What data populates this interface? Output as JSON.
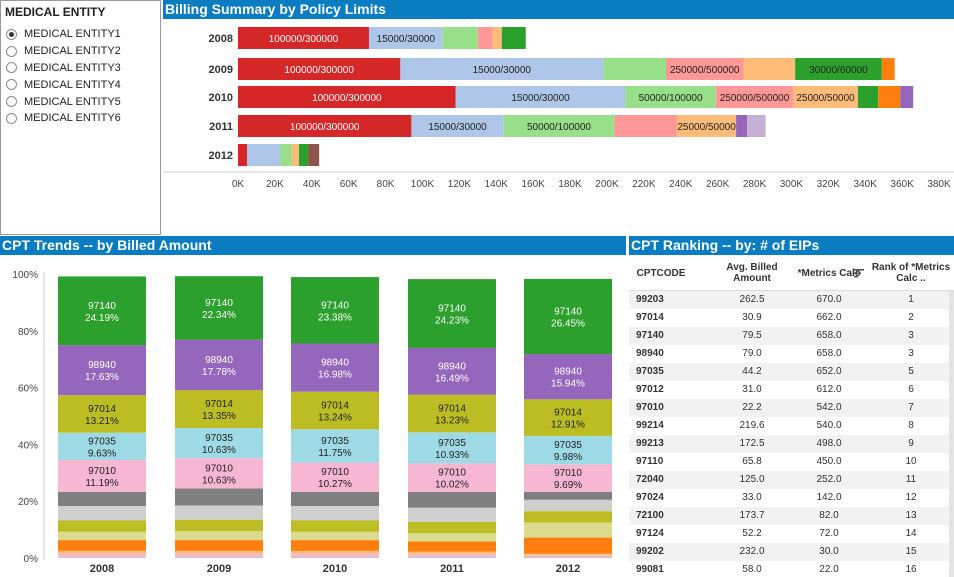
{
  "filter": {
    "title": "MEDICAL ENTITY",
    "selected": 0,
    "options": [
      "MEDICAL ENTITY1",
      "MEDICAL ENTITY2",
      "MEDICAL ENTITY3",
      "MEDICAL ENTITY4",
      "MEDICAL ENTITY5",
      "MEDICAL ENTITY6"
    ]
  },
  "billing": {
    "title": "Billing Summary by Policy Limits"
  },
  "trends": {
    "title": "CPT Trends -- by Billed Amount"
  },
  "ranking": {
    "title": "CPT Ranking -- by: # of EIPs",
    "columns": [
      "CPTCODE",
      "Avg. Billed Amount",
      "*Metrics Calc",
      "Rank of *Metrics Calc .."
    ],
    "sort_icon": "sort-descending-icon",
    "rows": [
      {
        "code": "99203",
        "avg": "262.5",
        "metrics": "670.0",
        "rank": "1"
      },
      {
        "code": "97014",
        "avg": "30.9",
        "metrics": "662.0",
        "rank": "2"
      },
      {
        "code": "97140",
        "avg": "79.5",
        "metrics": "658.0",
        "rank": "3"
      },
      {
        "code": "98940",
        "avg": "79.0",
        "metrics": "658.0",
        "rank": "3"
      },
      {
        "code": "97035",
        "avg": "44.2",
        "metrics": "652.0",
        "rank": "5"
      },
      {
        "code": "97012",
        "avg": "31.0",
        "metrics": "612.0",
        "rank": "6"
      },
      {
        "code": "97010",
        "avg": "22.2",
        "metrics": "542.0",
        "rank": "7"
      },
      {
        "code": "99214",
        "avg": "219.6",
        "metrics": "540.0",
        "rank": "8"
      },
      {
        "code": "99213",
        "avg": "172.5",
        "metrics": "498.0",
        "rank": "9"
      },
      {
        "code": "97110",
        "avg": "65.8",
        "metrics": "450.0",
        "rank": "10"
      },
      {
        "code": "72040",
        "avg": "125.0",
        "metrics": "252.0",
        "rank": "11"
      },
      {
        "code": "97024",
        "avg": "33.0",
        "metrics": "142.0",
        "rank": "12"
      },
      {
        "code": "72100",
        "avg": "173.7",
        "metrics": "82.0",
        "rank": "13"
      },
      {
        "code": "97124",
        "avg": "52.2",
        "metrics": "72.0",
        "rank": "14"
      },
      {
        "code": "99202",
        "avg": "232.0",
        "metrics": "30.0",
        "rank": "15"
      },
      {
        "code": "99081",
        "avg": "58.0",
        "metrics": "22.0",
        "rank": "16"
      }
    ]
  },
  "chart_data": [
    {
      "type": "bar",
      "orientation": "horizontal",
      "stacked": true,
      "title": "Billing Summary by Policy Limits",
      "categories": [
        "2008",
        "2009",
        "2010",
        "2011",
        "2012"
      ],
      "xlim": [
        0,
        380000
      ],
      "x_ticks": [
        0,
        20000,
        40000,
        60000,
        80000,
        100000,
        120000,
        140000,
        160000,
        180000,
        200000,
        220000,
        240000,
        260000,
        280000,
        300000,
        320000,
        340000,
        360000,
        380000
      ],
      "x_tick_labels": [
        "0K",
        "20K",
        "40K",
        "60K",
        "80K",
        "100K",
        "120K",
        "140K",
        "160K",
        "180K",
        "200K",
        "220K",
        "240K",
        "260K",
        "280K",
        "300K",
        "320K",
        "340K",
        "360K",
        "380K"
      ],
      "grid": false,
      "colors": [
        "#d62728",
        "#aec7e8",
        "#98df8a",
        "#ff9896",
        "#ffbb78",
        "#2ca02c",
        "#ff7f0e",
        "#9467bd",
        "#c5b0d5",
        "#8c564b"
      ],
      "bars": [
        {
          "year": "2008",
          "segments": [
            {
              "label": "100000/300000",
              "value": 71000,
              "color": "#d62728"
            },
            {
              "label": "15000/30000",
              "value": 40000,
              "color": "#aec7e8"
            },
            {
              "label": "",
              "value": 19000,
              "color": "#98df8a"
            },
            {
              "label": "",
              "value": 8000,
              "color": "#ff9896"
            },
            {
              "label": "",
              "value": 5000,
              "color": "#ffbb78"
            },
            {
              "label": "",
              "value": 13000,
              "color": "#2ca02c"
            }
          ]
        },
        {
          "year": "2009",
          "segments": [
            {
              "label": "100000/300000",
              "value": 88000,
              "color": "#d62728"
            },
            {
              "label": "15000/30000",
              "value": 110000,
              "color": "#aec7e8"
            },
            {
              "label": "",
              "value": 34000,
              "color": "#98df8a"
            },
            {
              "label": "250000/500000",
              "value": 42000,
              "color": "#ff9896"
            },
            {
              "label": "",
              "value": 28000,
              "color": "#ffbb78"
            },
            {
              "label": "30000/60000",
              "value": 47000,
              "color": "#2ca02c"
            },
            {
              "label": "",
              "value": 7000,
              "color": "#ff7f0e"
            }
          ]
        },
        {
          "year": "2010",
          "segments": [
            {
              "label": "100000/300000",
              "value": 118000,
              "color": "#d62728"
            },
            {
              "label": "15000/30000",
              "value": 92000,
              "color": "#aec7e8"
            },
            {
              "label": "50000/100000",
              "value": 49000,
              "color": "#98df8a"
            },
            {
              "label": "250000/500000",
              "value": 42000,
              "color": "#ff9896"
            },
            {
              "label": "25000/50000",
              "value": 35000,
              "color": "#ffbb78"
            },
            {
              "label": "",
              "value": 11000,
              "color": "#2ca02c"
            },
            {
              "label": "",
              "value": 12000,
              "color": "#ff7f0e"
            },
            {
              "label": "",
              "value": 7000,
              "color": "#9467bd"
            }
          ]
        },
        {
          "year": "2011",
          "segments": [
            {
              "label": "100000/300000",
              "value": 94000,
              "color": "#d62728"
            },
            {
              "label": "15000/30000",
              "value": 50000,
              "color": "#aec7e8"
            },
            {
              "label": "50000/100000",
              "value": 60000,
              "color": "#98df8a"
            },
            {
              "label": "",
              "value": 34000,
              "color": "#ff9896"
            },
            {
              "label": "25000/50000",
              "value": 32000,
              "color": "#ffbb78"
            },
            {
              "label": "",
              "value": 6000,
              "color": "#9467bd"
            },
            {
              "label": "",
              "value": 10000,
              "color": "#c5b0d5"
            }
          ]
        },
        {
          "year": "2012",
          "segments": [
            {
              "label": "",
              "value": 5000,
              "color": "#d62728"
            },
            {
              "label": "",
              "value": 18000,
              "color": "#aec7e8"
            },
            {
              "label": "",
              "value": 6000,
              "color": "#98df8a"
            },
            {
              "label": "",
              "value": 4000,
              "color": "#ffbb78"
            },
            {
              "label": "",
              "value": 5000,
              "color": "#2ca02c"
            },
            {
              "label": "",
              "value": 6000,
              "color": "#8c564b"
            }
          ]
        }
      ]
    },
    {
      "type": "bar",
      "stacked": true,
      "normalized": true,
      "title": "CPT Trends -- by Billed Amount",
      "categories": [
        "2008",
        "2009",
        "2010",
        "2011",
        "2012"
      ],
      "ylim": [
        0,
        100
      ],
      "y_ticks": [
        0,
        20,
        40,
        60,
        80,
        100
      ],
      "y_tick_labels": [
        "0%",
        "20%",
        "40%",
        "60%",
        "80%",
        "100%"
      ],
      "series": [
        {
          "name": "",
          "color": "#c7c7c7",
          "values": [
            0.5,
            0.5,
            0.5,
            0.5,
            0.5
          ]
        },
        {
          "name": "",
          "color": "#f7b6d2",
          "values": [
            1.0,
            1.0,
            1.0,
            0.8,
            0.5
          ]
        },
        {
          "name": "",
          "color": "#ffbb78",
          "values": [
            1.0,
            1.0,
            1.0,
            0.9,
            0.5
          ]
        },
        {
          "name": "",
          "color": "#ff7f0e",
          "values": [
            3.8,
            3.8,
            3.8,
            3.6,
            5.7
          ]
        },
        {
          "name": "",
          "color": "#dbdb8d",
          "values": [
            3.0,
            3.2,
            3.0,
            2.9,
            5.3
          ]
        },
        {
          "name": "",
          "color": "#bcbd22",
          "values": [
            4.0,
            4.0,
            4.0,
            4.0,
            4.0
          ]
        },
        {
          "name": "",
          "color": "#cfcfcf",
          "values": [
            5.0,
            5.0,
            5.0,
            5.0,
            4.0
          ]
        },
        {
          "name": "",
          "color": "#7f7f7f",
          "values": [
            5.0,
            6.0,
            5.0,
            5.6,
            2.8
          ]
        },
        {
          "name": "97010",
          "color": "#f7b6d2",
          "values": [
            11.19,
            10.63,
            10.27,
            10.02,
            9.69
          ]
        },
        {
          "name": "97035",
          "color": "#9edae5",
          "values": [
            9.63,
            10.63,
            11.75,
            10.93,
            9.98
          ]
        },
        {
          "name": "97014",
          "color": "#bcbd22",
          "values": [
            13.21,
            13.35,
            13.24,
            13.23,
            12.91
          ]
        },
        {
          "name": "98940",
          "color": "#9467bd",
          "values": [
            17.63,
            17.78,
            16.98,
            16.49,
            15.94
          ]
        },
        {
          "name": "97140",
          "color": "#2ca02c",
          "values": [
            24.19,
            22.34,
            23.38,
            24.23,
            26.45
          ]
        }
      ],
      "data_labels": {
        "97010": [
          "11.19%",
          "10.63%",
          "10.27%",
          "10.02%",
          "9.69%"
        ],
        "97035": [
          "9.63%",
          "10.63%",
          "11.75%",
          "10.93%",
          "9.98%"
        ],
        "97014": [
          "13.21%",
          "13.35%",
          "13.24%",
          "13.23%",
          "12.91%"
        ],
        "98940": [
          "17.63%",
          "17.78%",
          "16.98%",
          "16.49%",
          "15.94%"
        ],
        "97140": [
          "24.19%",
          "22.34%",
          "23.38%",
          "24.23%",
          "26.45%"
        ]
      }
    }
  ]
}
